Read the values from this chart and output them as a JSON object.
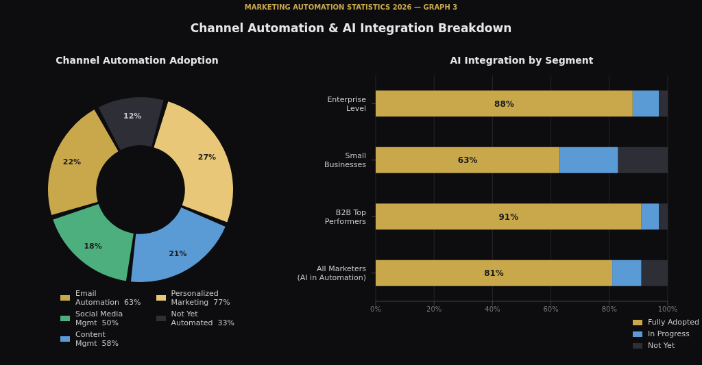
{
  "chart_data": [
    {
      "type": "donut",
      "title": "Channel Automation Adoption",
      "annotations": [
        "MARKETING AUTOMATION STATISTICS 2026 — GRAPH 3",
        "Channel Automation & AI Integration Breakdown"
      ],
      "categories": [
        "Email\nAutomation  63%",
        "Social Media\nMgmt  50%",
        "Content\nMgmt  58%",
        "Personalized\nMarketing  77%",
        "Not Yet\nAutomated  33%"
      ],
      "values": [
        22,
        18,
        21,
        27,
        12
      ],
      "value_labels": [
        "22%",
        "18%",
        "21%",
        "27%",
        "12%"
      ],
      "colors": [
        "#c9a84c",
        "#4caf7d",
        "#5b9bd5",
        "#e8c878",
        "#2e2e36"
      ],
      "legend": "bottom"
    },
    {
      "type": "bar",
      "orientation": "horizontal",
      "stacked": true,
      "title": "AI Integration by Segment",
      "categories": [
        "Enterprise\nLevel",
        "Small\nBusinesses",
        "B2B Top\nPerformers",
        "All Marketers\n(AI in Automation)"
      ],
      "series": [
        {
          "name": "Fully Adopted",
          "color": "#c9a84c",
          "values": [
            88,
            63,
            91,
            81
          ],
          "value_labels": [
            "88%",
            "63%",
            "91%",
            "81%"
          ]
        },
        {
          "name": "In Progress",
          "color": "#5b9bd5",
          "values": [
            9,
            20,
            6,
            10
          ]
        },
        {
          "name": "Not Yet",
          "color": "#2e2e36",
          "values": [
            3,
            17,
            3,
            9
          ]
        }
      ],
      "xlim": [
        0,
        100
      ],
      "xticks": [
        {
          "value": 0,
          "label": "0%"
        },
        {
          "value": 20,
          "label": "20%"
        },
        {
          "value": 40,
          "label": "40%"
        },
        {
          "value": 60,
          "label": "60%"
        },
        {
          "value": 80,
          "label": "80%"
        },
        {
          "value": 100,
          "label": "100%"
        }
      ],
      "grid": "x",
      "legend": "bottom right"
    }
  ]
}
